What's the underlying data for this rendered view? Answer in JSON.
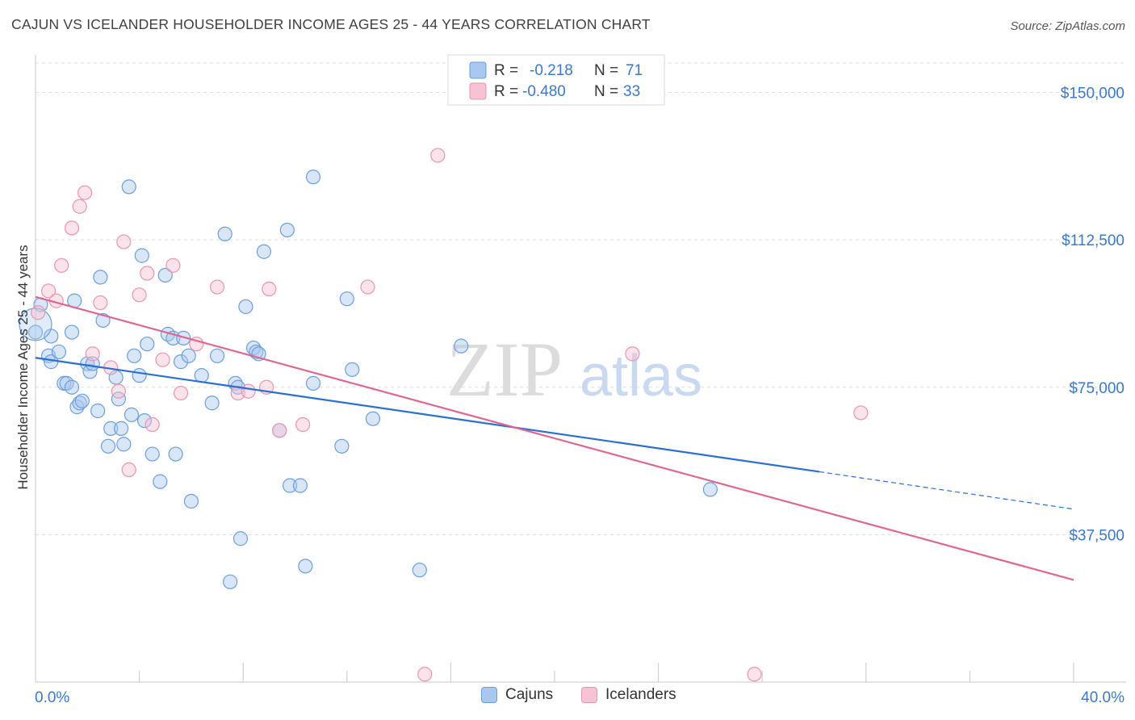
{
  "title": "CAJUN VS ICELANDER HOUSEHOLDER INCOME AGES 25 - 44 YEARS CORRELATION CHART",
  "source": "Source: ZipAtlas.com",
  "watermark": {
    "zip": "ZIP",
    "atlas": "atlas"
  },
  "colors": {
    "cajun_fill": "#a9c8f0",
    "cajun_stroke": "#6b9fdc",
    "cajun_line": "#2a6fd1",
    "iceland_fill": "#f7c2d3",
    "iceland_stroke": "#ea94b0",
    "iceland_line": "#e0668f",
    "axis_label": "#3a78c9",
    "grid": "#dddddd"
  },
  "chart_data": {
    "type": "scatter",
    "xlabel": "",
    "ylabel": "Householder Income Ages 25 - 44 years",
    "xlim": [
      0,
      40
    ],
    "ylim": [
      0,
      157500
    ],
    "x_tick_labels": {
      "min": "0.0%",
      "max": "40.0%"
    },
    "y_ticks": [
      37500,
      75000,
      112500,
      150000
    ],
    "y_tick_labels": [
      "$37,500",
      "$75,000",
      "$112,500",
      "$150,000"
    ],
    "grid": true,
    "legend_position": "top-center",
    "legend": [
      {
        "r_label": "R =",
        "r_value": "-0.218",
        "n_label": "N =",
        "n_value": "71"
      },
      {
        "r_label": "R =",
        "r_value": "-0.480",
        "n_label": "N =",
        "n_value": "33"
      }
    ],
    "series": [
      {
        "name": "Cajuns",
        "trend": {
          "x0": 0,
          "y0": 82500,
          "x1": 30.2,
          "y1": 53500,
          "x_dash_end": 40,
          "y_dash_end": 44000
        },
        "points": [
          [
            0.0,
            89000
          ],
          [
            0.2,
            96000
          ],
          [
            0.5,
            83000
          ],
          [
            0.6,
            81500
          ],
          [
            0.6,
            88000
          ],
          [
            0.9,
            84000
          ],
          [
            1.1,
            76000
          ],
          [
            1.2,
            76000
          ],
          [
            1.4,
            75000
          ],
          [
            1.4,
            89000
          ],
          [
            1.5,
            97000
          ],
          [
            1.6,
            70000
          ],
          [
            1.7,
            71000
          ],
          [
            1.8,
            71500
          ],
          [
            2.0,
            81000
          ],
          [
            2.1,
            79000
          ],
          [
            2.2,
            81000
          ],
          [
            2.4,
            69000
          ],
          [
            2.5,
            103000
          ],
          [
            2.6,
            92000
          ],
          [
            2.8,
            60000
          ],
          [
            2.9,
            64500
          ],
          [
            3.1,
            77500
          ],
          [
            3.2,
            72000
          ],
          [
            3.3,
            64500
          ],
          [
            3.4,
            60500
          ],
          [
            3.6,
            126000
          ],
          [
            3.7,
            68000
          ],
          [
            3.8,
            83000
          ],
          [
            4.0,
            78000
          ],
          [
            4.1,
            108500
          ],
          [
            4.2,
            66500
          ],
          [
            4.3,
            86000
          ],
          [
            4.5,
            58000
          ],
          [
            4.8,
            51000
          ],
          [
            5.0,
            103500
          ],
          [
            5.1,
            88500
          ],
          [
            5.3,
            87500
          ],
          [
            5.4,
            58000
          ],
          [
            5.6,
            81500
          ],
          [
            5.7,
            87500
          ],
          [
            5.9,
            83000
          ],
          [
            6.0,
            46000
          ],
          [
            6.4,
            78000
          ],
          [
            6.8,
            71000
          ],
          [
            7.0,
            83000
          ],
          [
            7.3,
            114000
          ],
          [
            7.5,
            25500
          ],
          [
            7.7,
            76000
          ],
          [
            7.8,
            75000
          ],
          [
            7.9,
            36500
          ],
          [
            8.1,
            95500
          ],
          [
            8.4,
            85000
          ],
          [
            8.5,
            84000
          ],
          [
            8.6,
            83500
          ],
          [
            8.8,
            109500
          ],
          [
            9.4,
            64000
          ],
          [
            9.7,
            115000
          ],
          [
            9.8,
            50000
          ],
          [
            10.2,
            50000
          ],
          [
            10.4,
            29500
          ],
          [
            10.7,
            128500
          ],
          [
            10.7,
            76000
          ],
          [
            11.8,
            60000
          ],
          [
            12.0,
            97500
          ],
          [
            12.2,
            79500
          ],
          [
            13.0,
            67000
          ],
          [
            14.8,
            28500
          ],
          [
            16.4,
            85500
          ],
          [
            26.0,
            49000
          ],
          [
            0.0,
            91000
          ]
        ]
      },
      {
        "name": "Icelanders",
        "trend": {
          "x0": 0,
          "y0": 98000,
          "x1": 40,
          "y1": 26000
        },
        "points": [
          [
            0.1,
            94000
          ],
          [
            0.5,
            99500
          ],
          [
            0.8,
            97000
          ],
          [
            1.0,
            106000
          ],
          [
            1.4,
            115500
          ],
          [
            1.7,
            121000
          ],
          [
            1.9,
            124500
          ],
          [
            2.2,
            83500
          ],
          [
            2.5,
            96500
          ],
          [
            2.9,
            80000
          ],
          [
            3.2,
            74000
          ],
          [
            3.4,
            112000
          ],
          [
            3.6,
            54000
          ],
          [
            4.0,
            98500
          ],
          [
            4.3,
            104000
          ],
          [
            4.5,
            65500
          ],
          [
            4.9,
            82000
          ],
          [
            5.3,
            106000
          ],
          [
            5.6,
            73500
          ],
          [
            6.2,
            86000
          ],
          [
            7.0,
            100500
          ],
          [
            7.8,
            73500
          ],
          [
            8.2,
            74000
          ],
          [
            8.9,
            75000
          ],
          [
            9.0,
            100000
          ],
          [
            9.4,
            64000
          ],
          [
            10.3,
            65500
          ],
          [
            12.8,
            100500
          ],
          [
            15.0,
            2000
          ],
          [
            15.5,
            134000
          ],
          [
            23.0,
            83500
          ],
          [
            27.7,
            2000
          ],
          [
            31.8,
            68500
          ]
        ]
      }
    ]
  }
}
